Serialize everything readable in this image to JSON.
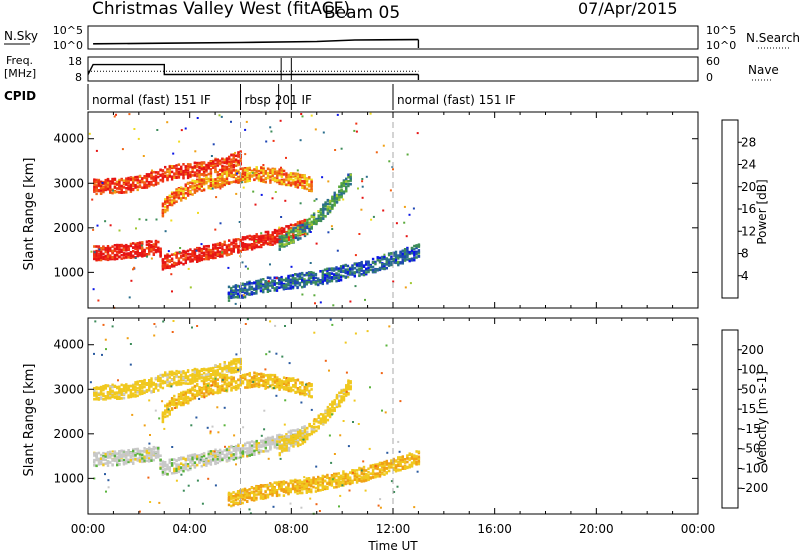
{
  "header": {
    "station": "Christmas Valley West (fitACF)",
    "beam": "Beam 05",
    "date": "07/Apr/2015"
  },
  "panels": {
    "nsky": {
      "label": "N.Sky",
      "ticks_left": [
        "10^5",
        "10^0"
      ],
      "ticks_right": [
        "10^5",
        "10^0"
      ],
      "right_label": "N.Search",
      "ylim": [
        0,
        5
      ]
    },
    "freq": {
      "label_line1": "Freq.",
      "label_line2": "[MHz]",
      "ticks_left": [
        "18",
        "8"
      ],
      "ticks_right": [
        "60",
        "0"
      ],
      "right_label": "Nave"
    },
    "cpid": {
      "label": "CPID",
      "segments": [
        {
          "label": "normal (fast) 151 IF",
          "start": 0,
          "end": 6.0
        },
        {
          "label": "rbsp 201 IF",
          "start": 6.0,
          "end": 12.0
        },
        {
          "label": "normal (fast) 151 IF",
          "start": 12.0,
          "end": 13.0
        }
      ]
    }
  },
  "power_colorbar": {
    "label": "Power [dB]",
    "ticks": [
      "28",
      "24",
      "20",
      "16",
      "12",
      "8",
      "4"
    ],
    "colors": [
      "#0a14e6",
      "#1e46b4",
      "#2a6e8c",
      "#3c8c5a",
      "#5aaa3c",
      "#a0c832",
      "#f0dc1e",
      "#f0a014",
      "#f06414",
      "#f03214",
      "#e61414"
    ]
  },
  "velocity_colorbar": {
    "label": "Velocity [m s-1]",
    "ticks": [
      "200",
      "100",
      "50",
      "15",
      "-15",
      "-50",
      "-100",
      "-200"
    ],
    "colors": [
      "#1428c8",
      "#2a5aa0",
      "#3c8c5a",
      "#5ab43c",
      "#c8c8c8",
      "#f0c81e",
      "#f0a014",
      "#f06414",
      "#f03214",
      "#e61414"
    ]
  },
  "axes": {
    "ylabel": "Slant Range [km]",
    "yticks": [
      "1000",
      "2000",
      "3000",
      "4000"
    ],
    "xlabel": "Time UT",
    "xticks": [
      "00:00",
      "04:00",
      "08:00",
      "12:00",
      "16:00",
      "20:00",
      "00:00"
    ]
  },
  "chart_data": {
    "type": "heatmap",
    "x_unit": "hours UT",
    "xlim": [
      0,
      24
    ],
    "ylim": [
      200,
      4600
    ],
    "power_features": [
      {
        "name": "upper band",
        "points": [
          [
            0.2,
            2950
          ],
          [
            1.5,
            2980
          ],
          [
            2.7,
            3150
          ],
          [
            3.0,
            3250
          ],
          [
            4.5,
            3350
          ],
          [
            5.5,
            3500
          ],
          [
            6.0,
            3600
          ]
        ],
        "level": 26
      },
      {
        "name": "middle band",
        "points": [
          [
            2.9,
            2450
          ],
          [
            3.3,
            2700
          ],
          [
            4.3,
            3000
          ],
          [
            5.5,
            3150
          ],
          [
            6.5,
            3250
          ],
          [
            7.8,
            3150
          ],
          [
            8.8,
            3000
          ]
        ],
        "level": 22
      },
      {
        "name": "lower band",
        "points": [
          [
            0.2,
            1450
          ],
          [
            1.5,
            1500
          ],
          [
            2.7,
            1600
          ],
          [
            2.9,
            1250
          ],
          [
            4.5,
            1450
          ],
          [
            6.0,
            1650
          ],
          [
            7.5,
            1850
          ],
          [
            8.5,
            2050
          ]
        ],
        "level": 28
      },
      {
        "name": "steep band",
        "points": [
          [
            7.5,
            1700
          ],
          [
            8.5,
            2000
          ],
          [
            9.5,
            2550
          ],
          [
            10.3,
            3150
          ]
        ],
        "level": 10
      },
      {
        "name": "weak late band",
        "points": [
          [
            5.5,
            550
          ],
          [
            7.0,
            750
          ],
          [
            9.0,
            900
          ],
          [
            11.0,
            1150
          ],
          [
            13.0,
            1500
          ]
        ],
        "level": 6
      }
    ],
    "velocity_features": [
      {
        "name": "upper band",
        "points": [
          [
            0.2,
            2950
          ],
          [
            1.5,
            2980
          ],
          [
            2.7,
            3150
          ],
          [
            3.0,
            3250
          ],
          [
            4.5,
            3350
          ],
          [
            5.5,
            3500
          ],
          [
            6.0,
            3600
          ]
        ],
        "velocity": -30
      },
      {
        "name": "middle band",
        "points": [
          [
            2.9,
            2450
          ],
          [
            3.3,
            2700
          ],
          [
            4.3,
            3000
          ],
          [
            5.5,
            3150
          ],
          [
            6.5,
            3250
          ],
          [
            7.8,
            3150
          ],
          [
            8.8,
            3000
          ]
        ],
        "velocity": -40
      },
      {
        "name": "lower band",
        "points": [
          [
            0.2,
            1450
          ],
          [
            1.5,
            1500
          ],
          [
            2.7,
            1600
          ],
          [
            2.9,
            1250
          ],
          [
            4.5,
            1450
          ],
          [
            6.0,
            1650
          ],
          [
            7.5,
            1850
          ],
          [
            8.5,
            2050
          ]
        ],
        "velocity": 0
      },
      {
        "name": "steep band",
        "points": [
          [
            7.5,
            1700
          ],
          [
            8.5,
            2000
          ],
          [
            9.5,
            2550
          ],
          [
            10.3,
            3150
          ]
        ],
        "velocity": -30
      },
      {
        "name": "weak late band",
        "points": [
          [
            5.5,
            550
          ],
          [
            7.0,
            750
          ],
          [
            9.0,
            900
          ],
          [
            11.0,
            1150
          ],
          [
            13.0,
            1500
          ]
        ],
        "velocity": -45
      }
    ],
    "nsky_series": [
      [
        0.2,
        1.0
      ],
      [
        3.0,
        1.15
      ],
      [
        6.0,
        1.3
      ],
      [
        9.0,
        1.55
      ],
      [
        10.5,
        1.9
      ],
      [
        13.0,
        2.0
      ]
    ],
    "freq_series": [
      [
        0.0,
        10.5
      ],
      [
        0.2,
        15.0
      ],
      [
        3.0,
        15.0
      ],
      [
        3.0,
        10.5
      ],
      [
        13.0,
        10.5
      ]
    ],
    "nave_series": [
      [
        0.0,
        0
      ],
      [
        13.0,
        0
      ]
    ],
    "data_end_hour": 13.0,
    "marker_hours": [
      6.0,
      12.0
    ]
  }
}
